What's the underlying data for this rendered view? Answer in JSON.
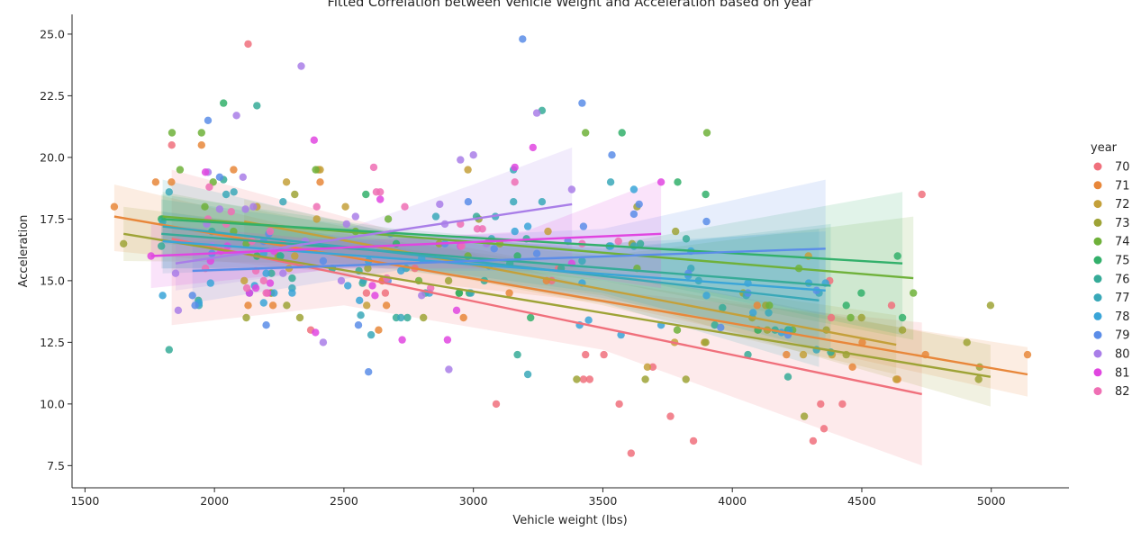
{
  "chart_data": {
    "type": "scatter",
    "title": "Fitted Correlation between Vehicle Weight and Acceleration based on year",
    "xlabel": "Vehicle weight (lbs)",
    "ylabel": "Acceleration",
    "xlim": [
      1450,
      5300
    ],
    "ylim": [
      6.6,
      25.8
    ],
    "x_ticks": [
      1500,
      2000,
      2500,
      3000,
      3500,
      4000,
      4500,
      5000
    ],
    "x_tick_labels": [
      "1500",
      "2000",
      "2500",
      "3000",
      "3500",
      "4000",
      "4500",
      "5000"
    ],
    "y_ticks": [
      7.5,
      10.0,
      12.5,
      15.0,
      17.5,
      20.0,
      22.5,
      25.0
    ],
    "y_tick_labels": [
      "7.5",
      "10.0",
      "12.5",
      "15.0",
      "17.5",
      "20.0",
      "22.5",
      "25.0"
    ],
    "grid": false,
    "legend": {
      "title": "year",
      "placement": "right"
    },
    "series": [
      {
        "name": "70",
        "color": "#f0707c",
        "fit": {
          "x": [
            1835,
            4732
          ],
          "y": [
            16.7,
            10.4
          ]
        },
        "band": {
          "x": [
            1835,
            2500,
            3500,
            4732
          ],
          "lo": [
            13.2,
            14.0,
            12.2,
            7.5
          ],
          "hi": [
            19.5,
            17.6,
            14.6,
            13.3
          ]
        },
        "x": [
          1835,
          2130,
          2372,
          2587,
          2648,
          2774,
          3088,
          3302,
          3329,
          3425,
          3433,
          3449,
          3504,
          3563,
          3609,
          3693,
          3761,
          3850,
          4312,
          4341,
          4354,
          4376,
          4382,
          4425,
          4615,
          4732,
          2264,
          2660
        ],
        "y": [
          20.5,
          24.6,
          13.0,
          14.5,
          15.0,
          15.5,
          10.0,
          15.0,
          15.5,
          11.0,
          12.0,
          11.0,
          12.0,
          10.0,
          8.0,
          11.5,
          9.5,
          8.5,
          8.5,
          10.0,
          9.0,
          15.0,
          13.5,
          10.0,
          14.0,
          18.5,
          16.5,
          14.5
        ]
      },
      {
        "name": "71",
        "color": "#e8873a",
        "fit": {
          "x": [
            1613,
            5140
          ],
          "y": [
            17.6,
            11.2
          ]
        },
        "band": {
          "x": [
            1613,
            2500,
            3500,
            5140
          ],
          "lo": [
            16.2,
            15.3,
            14.1,
            10.3
          ],
          "hi": [
            18.9,
            16.7,
            15.0,
            12.3
          ]
        },
        "x": [
          1613,
          1773,
          1834,
          1950,
          2074,
          2130,
          2219,
          2226,
          2408,
          2634,
          2648,
          2664,
          2962,
          3139,
          3282,
          4096,
          4209,
          4464,
          4502,
          4638,
          4746,
          5140
        ],
        "y": [
          18.0,
          19.0,
          19.0,
          20.5,
          19.5,
          14.0,
          14.5,
          14.0,
          19.0,
          13.0,
          15.0,
          14.0,
          13.5,
          14.5,
          15.0,
          14.0,
          12.0,
          11.5,
          12.5,
          11.0,
          12.0,
          12.0
        ]
      },
      {
        "name": "72",
        "color": "#c4a03a",
        "fit": {
          "x": [
            2115,
            4633
          ],
          "y": [
            17.4,
            12.4
          ]
        },
        "band": {
          "x": [
            2115,
            2700,
            3500,
            4633
          ],
          "lo": [
            16.6,
            15.6,
            14.0,
            11.2
          ],
          "hi": [
            18.3,
            16.9,
            15.3,
            13.6
          ]
        },
        "x": [
          2115,
          2164,
          2278,
          2401,
          2408,
          2288,
          2395,
          2506,
          2979,
          2588,
          3672,
          3892,
          4098,
          4274,
          4294,
          4385,
          4633,
          2945,
          3288,
          3777,
          2310
        ],
        "y": [
          15.0,
          18.0,
          19.0,
          19.5,
          19.5,
          15.5,
          17.5,
          18.0,
          19.5,
          14.0,
          11.5,
          12.5,
          13.0,
          12.0,
          16.0,
          12.0,
          11.0,
          14.5,
          17.0,
          12.5,
          16.0
        ]
      },
      {
        "name": "73",
        "color": "#9ea336",
        "fit": {
          "x": [
            1649,
            4997
          ],
          "y": [
            16.9,
            11.1
          ]
        },
        "band": {
          "x": [
            1649,
            2500,
            3500,
            4997
          ],
          "lo": [
            15.8,
            15.7,
            14.4,
            9.9
          ],
          "hi": [
            18.0,
            16.9,
            15.4,
            12.4
          ]
        },
        "x": [
          1649,
          2123,
          2219,
          2279,
          2310,
          2330,
          2592,
          2807,
          2904,
          3021,
          3399,
          3613,
          3632,
          3664,
          3781,
          3821,
          3897,
          4042,
          4077,
          4135,
          4278,
          4363,
          4440,
          4499,
          4657,
          4906,
          4951,
          4997,
          2246,
          2868,
          3102,
          4129,
          4955
        ],
        "y": [
          16.5,
          13.5,
          14.5,
          14.0,
          18.5,
          13.5,
          15.5,
          13.5,
          15.0,
          17.5,
          11.0,
          16.5,
          18.0,
          11.0,
          17.0,
          11.0,
          12.5,
          14.5,
          13.5,
          13.0,
          9.5,
          13.0,
          12.0,
          13.5,
          13.0,
          12.5,
          11.0,
          14.0,
          16.0,
          16.5,
          16.5,
          14.0,
          11.5
        ]
      },
      {
        "name": "74",
        "color": "#6fb13a",
        "fit": {
          "x": [
            1800,
            4699
          ],
          "y": [
            17.6,
            15.1
          ]
        },
        "band": {
          "x": [
            1800,
            2700,
            3500,
            4699
          ],
          "lo": [
            16.6,
            15.9,
            15.0,
            12.6
          ],
          "hi": [
            18.6,
            16.8,
            16.0,
            17.6
          ]
        },
        "x": [
          1800,
          1836,
          1867,
          1950,
          1963,
          1995,
          2074,
          2123,
          2391,
          2545,
          2671,
          2789,
          2945,
          2979,
          3433,
          3632,
          3787,
          3902,
          4699,
          4257,
          4457,
          4233,
          4143
        ],
        "y": [
          17.5,
          21.0,
          19.5,
          21.0,
          18.0,
          19.0,
          17.0,
          16.5,
          19.5,
          17.0,
          17.5,
          15.0,
          14.5,
          16.0,
          21.0,
          15.5,
          13.0,
          21.0,
          14.5,
          15.5,
          13.5,
          13.0,
          14.0
        ]
      },
      {
        "name": "75",
        "color": "#33b06b",
        "fit": {
          "x": [
            1795,
            4657
          ],
          "y": [
            17.5,
            15.7
          ]
        },
        "band": {
          "x": [
            1795,
            2700,
            3500,
            4657
          ],
          "lo": [
            16.5,
            15.9,
            15.3,
            12.8
          ],
          "hi": [
            18.5,
            17.1,
            16.4,
            18.6
          ]
        },
        "x": [
          1795,
          2035,
          2164,
          2254,
          2585,
          2702,
          2945,
          2984,
          3221,
          3574,
          3789,
          3897,
          4099,
          4215,
          4440,
          4498,
          4638,
          4657,
          3170
        ],
        "y": [
          17.5,
          22.2,
          16.0,
          16.0,
          18.5,
          16.5,
          14.5,
          14.5,
          13.5,
          21.0,
          19.0,
          18.5,
          13.0,
          13.0,
          14.0,
          14.5,
          16.0,
          13.5,
          16.0
        ]
      },
      {
        "name": "76",
        "color": "#36ab98",
        "fit": {
          "x": [
            1795,
            4380
          ],
          "y": [
            16.9,
            14.8
          ]
        },
        "band": {
          "x": [
            1795,
            2700,
            3500,
            4380
          ],
          "lo": [
            15.5,
            15.6,
            14.5,
            12.1
          ],
          "hi": [
            18.3,
            17.0,
            16.2,
            17.3
          ]
        },
        "x": [
          1795,
          1825,
          1938,
          1990,
          2035,
          2164,
          2220,
          2255,
          2300,
          2455,
          2558,
          2572,
          2702,
          2745,
          2815,
          3012,
          3042,
          3141,
          3170,
          3205,
          3265,
          3339,
          3525,
          3645,
          3822,
          3962,
          4060,
          4165,
          4215,
          4380,
          3932
        ],
        "y": [
          16.4,
          12.2,
          14.2,
          17.0,
          19.1,
          22.1,
          15.3,
          16.0,
          15.1,
          15.5,
          15.4,
          14.9,
          13.5,
          13.5,
          14.5,
          17.6,
          15.0,
          15.7,
          12.0,
          16.7,
          21.9,
          15.5,
          16.4,
          16.5,
          16.7,
          13.9,
          12.0,
          13.0,
          11.1,
          12.1,
          13.2
        ]
      },
      {
        "name": "77",
        "color": "#39a8b8",
        "fit": {
          "x": [
            1800,
            4335
          ],
          "y": [
            17.2,
            14.2
          ]
        },
        "band": {
          "x": [
            1800,
            2700,
            3500,
            4335
          ],
          "lo": [
            15.3,
            15.6,
            14.1,
            11.5
          ],
          "hi": [
            19.1,
            16.9,
            16.3,
            17.1
          ]
        },
        "x": [
          1800,
          1825,
          1940,
          2045,
          2075,
          2265,
          2300,
          2565,
          2575,
          2605,
          2720,
          2740,
          2855,
          3070,
          3085,
          3155,
          3210,
          3265,
          3420,
          3530,
          3620,
          3840,
          3870,
          4054,
          4140,
          4325,
          4335,
          2990,
          3155,
          4220
        ],
        "y": [
          17.4,
          18.6,
          14.0,
          18.5,
          18.6,
          18.2,
          14.7,
          13.6,
          15.0,
          12.8,
          13.5,
          15.5,
          17.6,
          16.7,
          17.6,
          19.5,
          11.2,
          18.2,
          15.8,
          19.0,
          16.4,
          15.5,
          15.0,
          14.4,
          13.7,
          12.2,
          14.5,
          14.5,
          18.2,
          13.0
        ]
      },
      {
        "name": "78",
        "color": "#3aa5d8",
        "fit": {
          "x": [
            1800,
            4360
          ],
          "y": [
            16.6,
            14.6
          ]
        },
        "band": {
          "x": [
            1800,
            2700,
            3500,
            4360
          ],
          "lo": [
            15.5,
            15.5,
            14.3,
            12.6
          ],
          "hi": [
            17.8,
            16.5,
            16.5,
            17.0
          ]
        },
        "x": [
          1800,
          1940,
          1985,
          2135,
          2155,
          2190,
          2200,
          2230,
          2300,
          2515,
          2560,
          2595,
          2720,
          2800,
          2830,
          3060,
          3160,
          3210,
          3410,
          3420,
          3445,
          3530,
          3570,
          3620,
          3725,
          3830,
          3840,
          3900,
          4060,
          4080,
          4190,
          4295,
          4360,
          2190
        ],
        "y": [
          14.4,
          14.1,
          14.9,
          14.5,
          14.8,
          14.1,
          15.3,
          14.5,
          14.5,
          14.8,
          14.2,
          15.8,
          15.4,
          15.9,
          14.5,
          15.6,
          17.0,
          17.2,
          13.2,
          14.9,
          13.4,
          16.4,
          12.8,
          18.7,
          13.2,
          15.2,
          16.2,
          14.4,
          14.9,
          13.7,
          12.9,
          14.9,
          14.9,
          16.1
        ]
      },
      {
        "name": "79",
        "color": "#5b8de8",
        "fit": {
          "x": [
            1915,
            4360
          ],
          "y": [
            15.4,
            16.3
          ]
        },
        "band": {
          "x": [
            1915,
            2700,
            3500,
            4360
          ],
          "lo": [
            14.1,
            15.4,
            15.4,
            13.6
          ],
          "hi": [
            16.6,
            16.7,
            17.1,
            19.1
          ]
        },
        "x": [
          1915,
          1925,
          1975,
          1990,
          2020,
          2190,
          2200,
          2210,
          2420,
          2556,
          2595,
          2670,
          2890,
          2980,
          3190,
          3245,
          3365,
          3420,
          3425,
          3535,
          3620,
          3640,
          3830,
          3900,
          3955,
          4060,
          4215,
          4325,
          2680,
          3080
        ],
        "y": [
          14.4,
          14.0,
          21.5,
          16.1,
          19.2,
          16.6,
          13.2,
          16.9,
          15.8,
          13.2,
          11.3,
          15.0,
          16.5,
          18.2,
          24.8,
          16.1,
          16.6,
          22.2,
          17.2,
          20.1,
          17.7,
          18.1,
          15.3,
          17.4,
          13.1,
          14.5,
          12.8,
          14.6,
          16.9,
          16.3
        ]
      },
      {
        "name": "80",
        "color": "#a97ee8",
        "fit": {
          "x": [
            1850,
            3381
          ],
          "y": [
            15.7,
            18.1
          ]
        },
        "band": {
          "x": [
            1850,
            2400,
            3000,
            3381
          ],
          "lo": [
            14.6,
            15.4,
            16.0,
            15.7
          ],
          "hi": [
            16.8,
            16.7,
            18.9,
            20.4
          ]
        },
        "x": [
          1850,
          1860,
          1970,
          1975,
          1990,
          2020,
          2085,
          2110,
          2120,
          2150,
          2265,
          2335,
          2350,
          2420,
          2490,
          2510,
          2545,
          2800,
          2870,
          2890,
          2905,
          2950,
          3000,
          3050,
          3245,
          3380
        ],
        "y": [
          15.3,
          13.8,
          17.3,
          19.4,
          16.4,
          17.9,
          21.7,
          19.2,
          17.9,
          18.0,
          15.3,
          23.7,
          16.6,
          12.5,
          15.0,
          17.3,
          17.6,
          14.4,
          18.1,
          17.3,
          11.4,
          19.9,
          20.1,
          16.5,
          21.8,
          18.7
        ]
      },
      {
        "name": "81",
        "color": "#e046e0",
        "fit": {
          "x": [
            1755,
            3725
          ],
          "y": [
            16.0,
            16.9
          ]
        },
        "band": {
          "x": [
            1755,
            2500,
            3200,
            3725
          ],
          "lo": [
            14.7,
            15.5,
            15.5,
            14.7
          ],
          "hi": [
            17.3,
            16.6,
            17.0,
            19.1
          ]
        },
        "x": [
          1755,
          1965,
          1985,
          2025,
          2050,
          2135,
          2160,
          2205,
          2215,
          2230,
          2385,
          2390,
          2610,
          2620,
          2725,
          2900,
          2935,
          2950,
          3060,
          3160,
          3230,
          3380,
          3725,
          2640
        ],
        "y": [
          16.0,
          19.4,
          15.8,
          16.2,
          16.4,
          14.5,
          14.7,
          14.5,
          14.9,
          16.2,
          20.7,
          12.9,
          14.8,
          14.4,
          12.6,
          12.6,
          13.8,
          16.4,
          16.6,
          19.6,
          20.4,
          15.7,
          19.0,
          18.3
        ]
      },
      {
        "name": "82",
        "color": "#ef6fb4",
        "fit": [],
        "band": [],
        "x": [
          1965,
          1975,
          1980,
          2045,
          2065,
          2125,
          2145,
          2160,
          2190,
          2200,
          2215,
          2395,
          2615,
          2625,
          2640,
          2665,
          2735,
          2835,
          2950,
          2955,
          3015,
          3035,
          3160,
          3420,
          3560
        ],
        "y": [
          15.5,
          17.5,
          18.8,
          17.3,
          17.8,
          14.7,
          16.6,
          15.4,
          15.0,
          14.5,
          17.0,
          18.0,
          19.6,
          18.6,
          18.6,
          15.1,
          18.0,
          14.7,
          17.3,
          16.4,
          17.1,
          17.1,
          19.0,
          16.5,
          16.6
        ]
      }
    ]
  }
}
